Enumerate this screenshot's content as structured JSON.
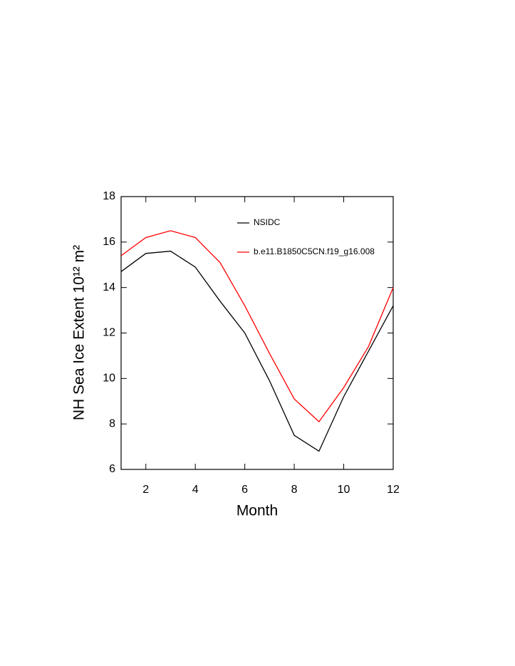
{
  "chart_data": {
    "type": "line",
    "xlabel": "Month",
    "ylabel": "NH Sea Ice Extent 10¹² m²",
    "x": [
      1,
      2,
      3,
      4,
      5,
      6,
      7,
      8,
      9,
      10,
      11,
      12
    ],
    "series": [
      {
        "name": "NSIDC",
        "color": "#000000",
        "values": [
          14.7,
          15.5,
          15.6,
          14.9,
          13.4,
          12.0,
          9.9,
          7.5,
          6.8,
          9.2,
          11.2,
          13.2
        ]
      },
      {
        "name": "b.e11.B1850C5CN.f19_g16.008",
        "color": "#ff0000",
        "values": [
          15.4,
          16.2,
          16.5,
          16.2,
          15.1,
          13.2,
          11.1,
          9.1,
          8.1,
          9.6,
          11.4,
          14.0
        ]
      }
    ],
    "xlim": [
      1,
      12
    ],
    "xticks": [
      2,
      4,
      6,
      8,
      10,
      12
    ],
    "ylim": [
      6,
      18
    ],
    "yticks": [
      6,
      8,
      10,
      12,
      14,
      16,
      18
    ],
    "grid": false
  }
}
